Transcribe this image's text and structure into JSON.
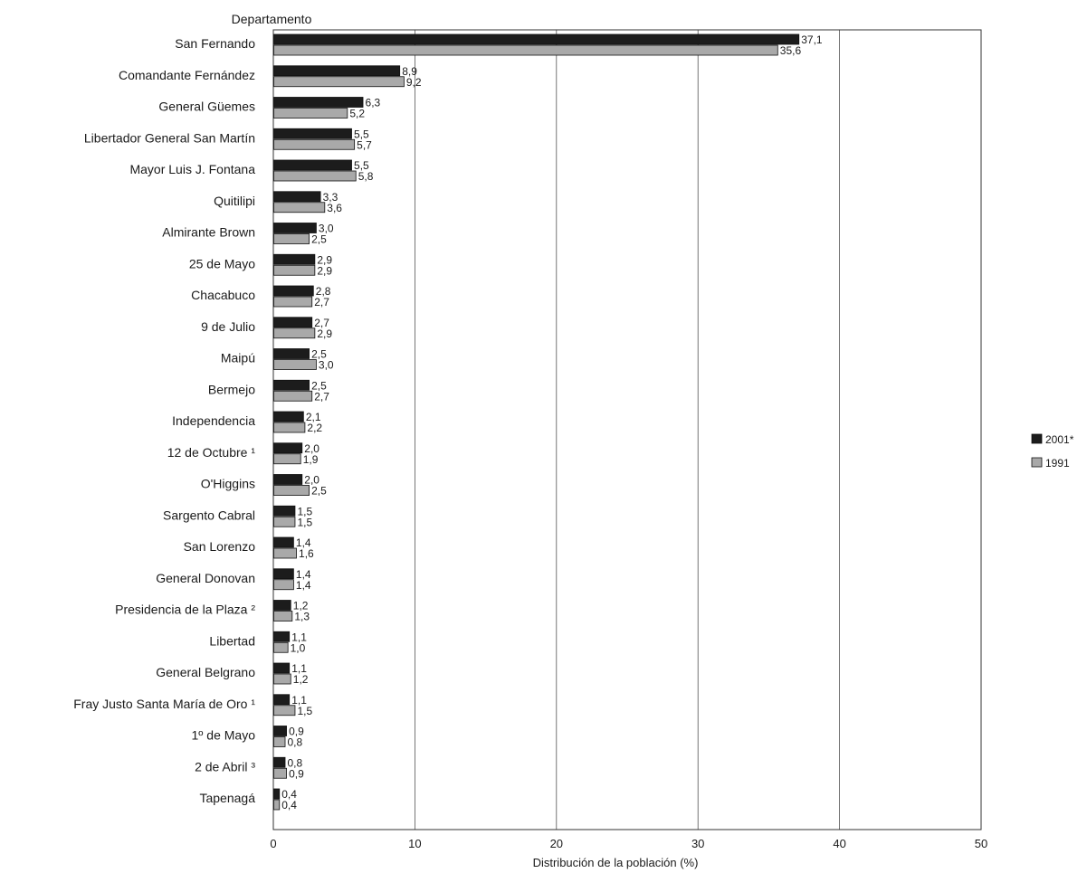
{
  "chart_data": {
    "type": "bar",
    "orientation": "horizontal",
    "y_header": "Departamento",
    "xlabel": "Distribución de la población (%)",
    "xlim": [
      0,
      50
    ],
    "xticks": [
      0,
      10,
      20,
      30,
      40,
      50
    ],
    "grid": "vertical",
    "legend_position": "right",
    "categories": [
      "San Fernando",
      "Comandante Fernández",
      "General Güemes",
      "Libertador General San Martín",
      "Mayor Luis J. Fontana",
      "Quitilipi",
      "Almirante Brown",
      "25 de Mayo",
      "Chacabuco",
      "9 de Julio",
      "Maipú",
      "Bermejo",
      "Independencia",
      "12 de Octubre ¹",
      "O'Higgins",
      "Sargento Cabral",
      "San Lorenzo",
      "General Donovan",
      "Presidencia de la Plaza ²",
      "Libertad",
      "General Belgrano",
      "Fray Justo Santa María de Oro ¹",
      "1º de Mayo",
      "2 de Abril ³",
      "Tapenagá"
    ],
    "series": [
      {
        "name": "2001*",
        "color": "#1c1c1c",
        "values": [
          37.1,
          8.9,
          6.3,
          5.5,
          5.5,
          3.3,
          3.0,
          2.9,
          2.8,
          2.7,
          2.5,
          2.5,
          2.1,
          2.0,
          2.0,
          1.5,
          1.4,
          1.4,
          1.2,
          1.1,
          1.1,
          1.1,
          0.9,
          0.8,
          0.4
        ],
        "labels": [
          "37,1",
          "8,9",
          "6,3",
          "5,5",
          "5,5",
          "3,3",
          "3,0",
          "2,9",
          "2,8",
          "2,7",
          "2,5",
          "2,5",
          "2,1",
          "2,0",
          "2,0",
          "1,5",
          "1,4",
          "1,4",
          "1,2",
          "1,1",
          "1,1",
          "1,1",
          "0,9",
          "0,8",
          "0,4"
        ]
      },
      {
        "name": "1991",
        "color": "#a9a9a9",
        "values": [
          35.6,
          9.2,
          5.2,
          5.7,
          5.8,
          3.6,
          2.5,
          2.9,
          2.7,
          2.9,
          3.0,
          2.7,
          2.2,
          1.9,
          2.5,
          1.5,
          1.6,
          1.4,
          1.3,
          1.0,
          1.2,
          1.5,
          0.8,
          0.9,
          0.4
        ],
        "labels": [
          "35,6",
          "9,2",
          "5,2",
          "5,7",
          "5,8",
          "3,6",
          "2,5",
          "2,9",
          "2,7",
          "2,9",
          "3,0",
          "2,7",
          "2,2",
          "1,9",
          "2,5",
          "1,5",
          "1,6",
          "1,4",
          "1,3",
          "1,0",
          "1,2",
          "1,5",
          "0,8",
          "0,9",
          "0,4"
        ]
      }
    ]
  }
}
